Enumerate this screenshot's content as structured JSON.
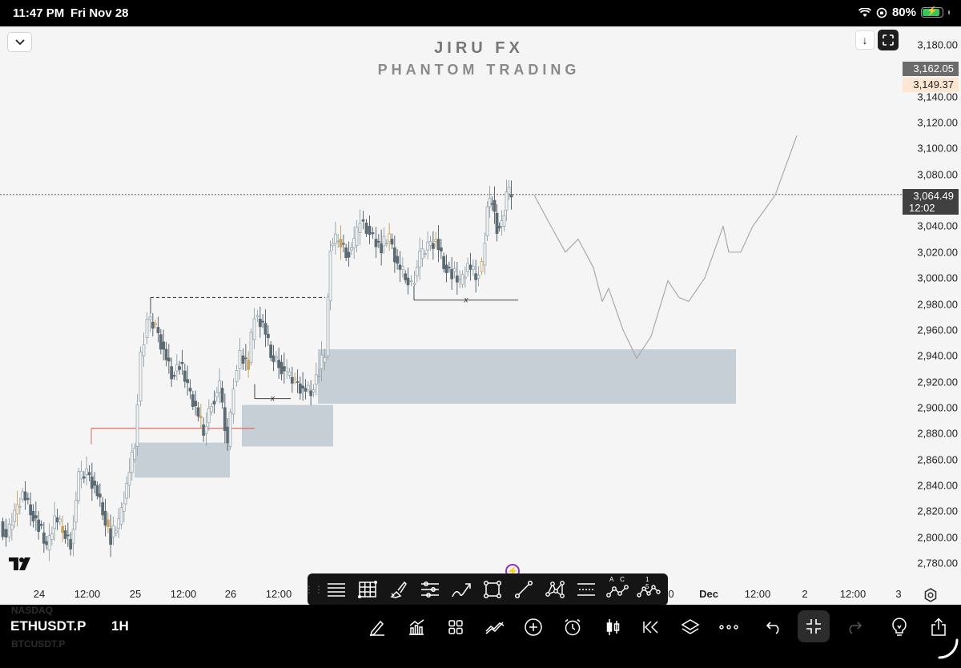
{
  "status_bar": {
    "time": "11:47 PM",
    "date": "Fri Nov 28",
    "battery": "80%"
  },
  "watermark": {
    "title": "JIRU FX",
    "subtitle": "PHANTOM TRADING"
  },
  "price_tags": [
    {
      "value": "3,162.05",
      "bg": "#6b6b6b",
      "fg": "#ffffff"
    },
    {
      "value": "3,149.37",
      "bg": "#fde6d2",
      "fg": "#222222"
    },
    {
      "value": "3,064.49",
      "countdown": "12:02",
      "bg": "#404040",
      "fg": "#ffffff"
    }
  ],
  "chart_data": {
    "type": "candlestick",
    "symbol": "ETHUSDT.P",
    "interval": "1H",
    "current_price": 3064.49,
    "y_axis": {
      "min": 2770,
      "max": 3190,
      "ticks": [
        "3,180.00",
        "3,140.00",
        "3,120.00",
        "3,100.00",
        "3,080.00",
        "3,040.00",
        "3,020.00",
        "3,000.00",
        "2,980.00",
        "2,960.00",
        "2,940.00",
        "2,920.00",
        "2,900.00",
        "2,880.00",
        "2,860.00",
        "2,840.00",
        "2,820.00",
        "2,800.00",
        "2,780.00"
      ]
    },
    "x_axis": {
      "ticks": [
        {
          "label": "24",
          "bold": false
        },
        {
          "label": "12:00",
          "bold": false
        },
        {
          "label": "25",
          "bold": false
        },
        {
          "label": "12:00",
          "bold": false
        },
        {
          "label": "26",
          "bold": false
        },
        {
          "label": "12:00",
          "bold": false
        },
        {
          "label": "0",
          "bold": false
        },
        {
          "label": "Dec",
          "bold": true
        },
        {
          "label": "12:00",
          "bold": false
        },
        {
          "label": "2",
          "bold": false
        },
        {
          "label": "12:00",
          "bold": false
        },
        {
          "label": "3",
          "bold": false
        }
      ]
    },
    "annotations": {
      "zones": [
        {
          "from": 2846,
          "to": 2873
        },
        {
          "from": 2870,
          "to": 2902
        },
        {
          "from": 2903,
          "to": 2945
        }
      ],
      "levels": [
        {
          "price": 2985,
          "style": "dashed",
          "label": ""
        },
        {
          "price": 2983,
          "style": "solid",
          "label": "x"
        },
        {
          "price": 2907,
          "style": "solid",
          "label": "x"
        },
        {
          "price": 2884,
          "style": "solid-red",
          "label": ""
        }
      ],
      "projection": [
        3064,
        3040,
        3020,
        3030,
        3008,
        2982,
        2992,
        2960,
        2938,
        2955,
        2998,
        2985,
        2982,
        3000,
        3040,
        3020,
        3020,
        3040,
        3064,
        3110
      ]
    },
    "colors": {
      "up": "#9aa7ae",
      "down": "#5c6a73",
      "doji": "#c8a464",
      "zone": "#c5cfd5",
      "red_line": "#e06b5f"
    }
  },
  "bottom_bar": {
    "symbol": "ETHUSDT.P",
    "interval": "1H",
    "ghost_above": "NASDAQ",
    "ghost_below": "BTCUSDT.P",
    "icons": [
      "pencil-icon",
      "indicators-icon",
      "grid-icon",
      "compare-icon",
      "add-icon",
      "alarm-icon",
      "candles-icon",
      "replay-icon",
      "layers-icon",
      "more-icon",
      "undo-icon",
      "fullscreen-exit-icon",
      "redo-icon",
      "ideas-icon",
      "share-icon"
    ]
  },
  "drawing_toolbar": {
    "tools": [
      "horizontal-lines-icon",
      "fib-grid-icon",
      "brush-icon",
      "parallel-channel-icon",
      "freehand-icon",
      "rectangle-icon",
      "trendline-icon",
      "pattern-icon",
      "ranges-icon",
      "abcd-pattern-icon",
      "elliott-wave-icon"
    ],
    "labels": {
      "abcd": "A C",
      "wave": "1 5"
    }
  }
}
